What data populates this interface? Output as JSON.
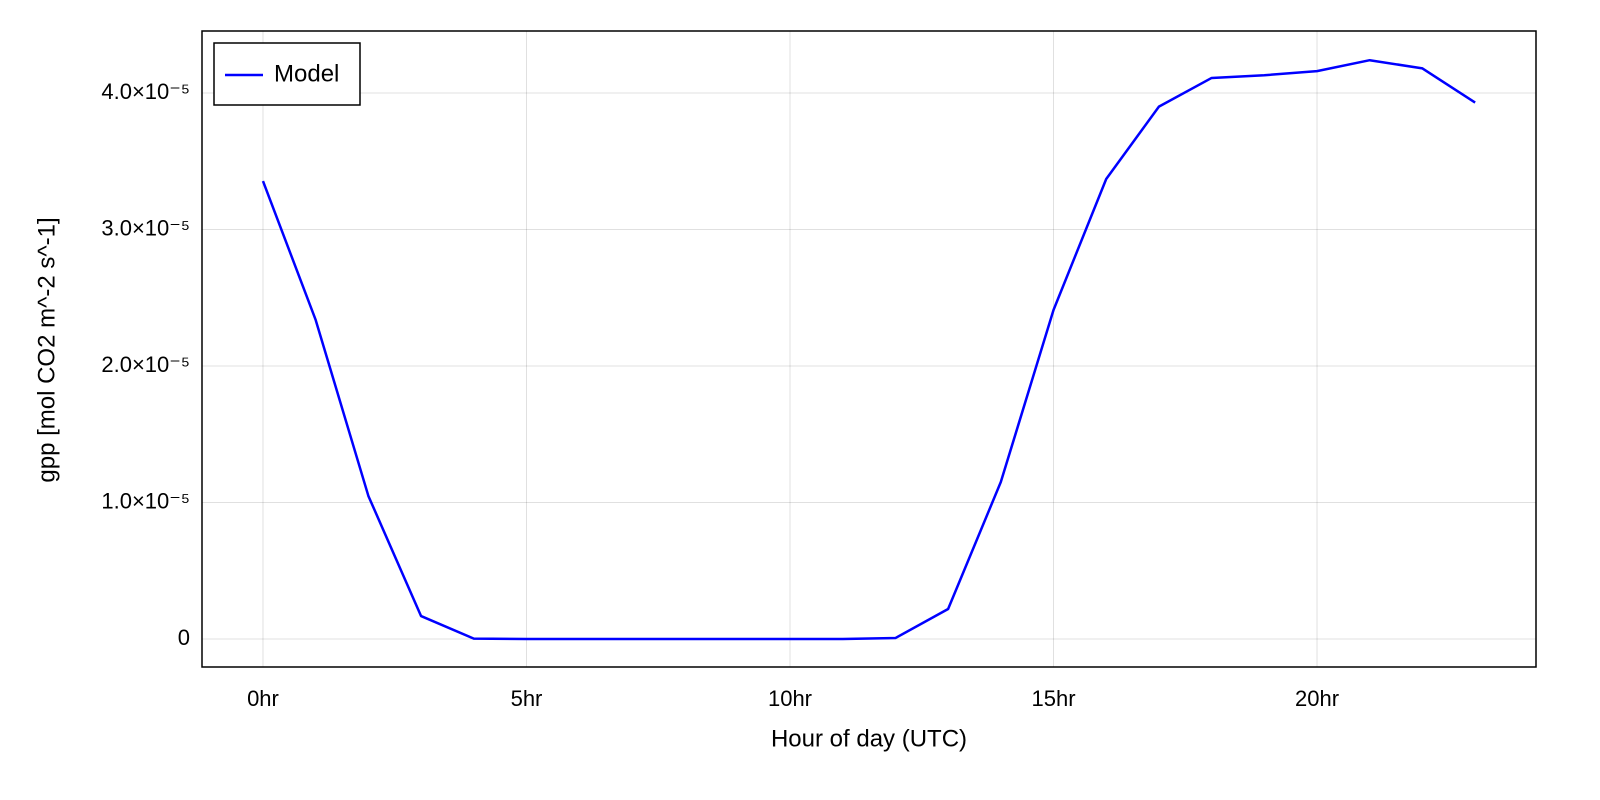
{
  "chart_data": {
    "type": "line",
    "xlabel": "Hour of day (UTC)",
    "ylabel": "gpp [mol CO2 m^-2 s^-1]",
    "x": [
      0,
      1,
      2,
      3,
      4,
      5,
      6,
      7,
      8,
      9,
      10,
      11,
      12,
      13,
      14,
      15,
      16,
      17,
      18,
      19,
      20,
      21,
      22,
      23
    ],
    "series": [
      {
        "name": "Model",
        "color": "#0000ff",
        "values": [
          3.355e-05,
          2.337e-05,
          1.048e-05,
          1.68e-06,
          3e-08,
          0,
          0,
          0,
          0,
          0,
          0,
          0,
          7e-08,
          2.2e-06,
          1.15e-05,
          2.41e-05,
          3.37e-05,
          3.9e-05,
          4.11e-05,
          4.13e-05,
          4.16e-05,
          4.24e-05,
          4.18e-05,
          3.93e-05
        ]
      }
    ],
    "xlim": [
      -1.157,
      24.155
    ],
    "ylim": [
      -2.05e-06,
      4.454e-05
    ],
    "xticks": [
      {
        "value": 0,
        "label": "0hr"
      },
      {
        "value": 5,
        "label": "5hr"
      },
      {
        "value": 10,
        "label": "10hr"
      },
      {
        "value": 15,
        "label": "15hr"
      },
      {
        "value": 20,
        "label": "20hr"
      }
    ],
    "yticks": [
      0,
      {
        "value": 1e-05,
        "label": "1.0×10⁻⁵"
      },
      {
        "value": 2e-05,
        "label": "2.0×10⁻⁵"
      },
      {
        "value": 3e-05,
        "label": "3.0×10⁻⁵"
      },
      {
        "value": 4e-05,
        "label": "4.0×10⁻⁵"
      }
    ],
    "grid": true,
    "legend": "top-left"
  }
}
